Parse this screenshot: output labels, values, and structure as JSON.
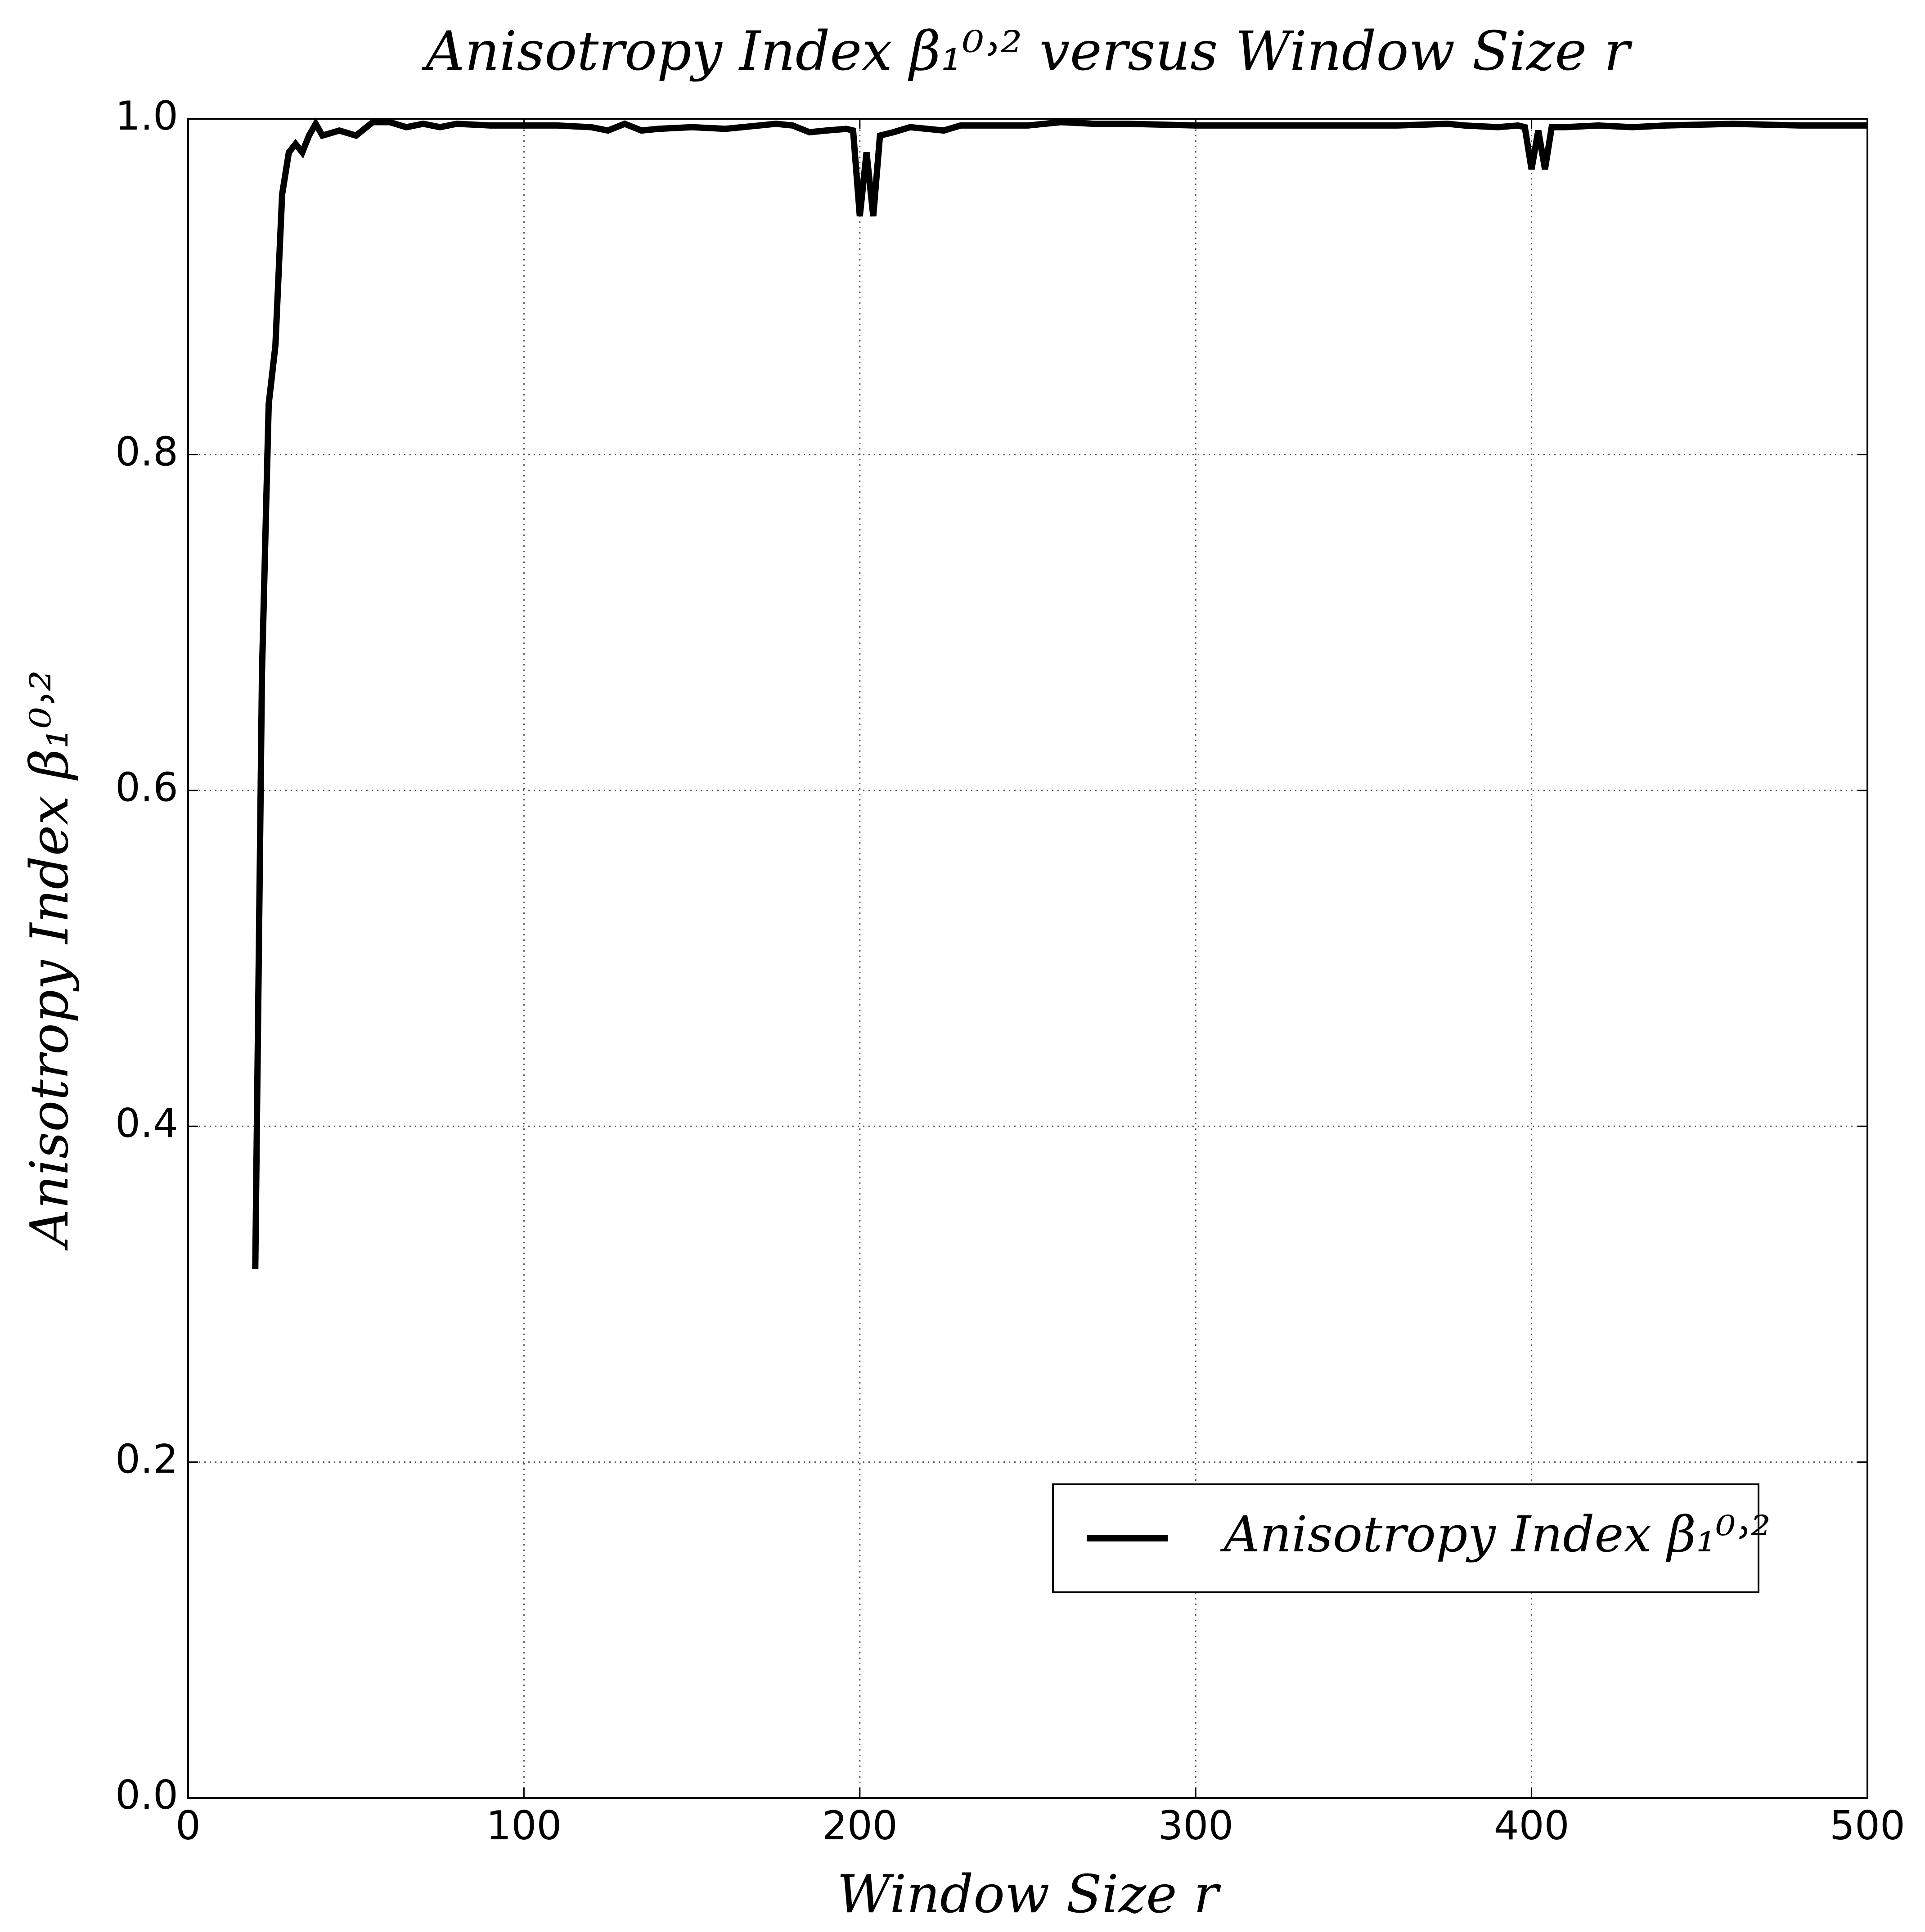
{
  "chart_data": {
    "type": "line",
    "title": "Anisotropy Index β₁⁰˒² versus Window Size r",
    "xlabel": "Window Size r",
    "ylabel": "Anisotropy Index β₁⁰˒²",
    "x": [
      20,
      22,
      24,
      26,
      28,
      30,
      32,
      34,
      36,
      38,
      40,
      45,
      50,
      55,
      60,
      65,
      70,
      75,
      80,
      90,
      100,
      110,
      120,
      125,
      130,
      135,
      140,
      150,
      160,
      170,
      175,
      180,
      185,
      190,
      196,
      198,
      200,
      202,
      204,
      206,
      210,
      215,
      220,
      225,
      230,
      240,
      250,
      260,
      270,
      280,
      300,
      320,
      340,
      360,
      375,
      380,
      390,
      396,
      398,
      400,
      402,
      404,
      406,
      410,
      420,
      430,
      440,
      460,
      480,
      500
    ],
    "series": [
      {
        "name": "Anisotropy Index β₁⁰˒²",
        "color": "#000000",
        "values": [
          0.315,
          0.67,
          0.83,
          0.865,
          0.955,
          0.98,
          0.985,
          0.98,
          0.99,
          0.997,
          0.99,
          0.993,
          0.99,
          0.998,
          0.998,
          0.995,
          0.997,
          0.995,
          0.997,
          0.996,
          0.996,
          0.996,
          0.995,
          0.993,
          0.997,
          0.993,
          0.994,
          0.995,
          0.994,
          0.996,
          0.997,
          0.996,
          0.992,
          0.993,
          0.994,
          0.993,
          0.942,
          0.98,
          0.942,
          0.99,
          0.992,
          0.995,
          0.994,
          0.993,
          0.996,
          0.996,
          0.996,
          0.998,
          0.997,
          0.997,
          0.996,
          0.996,
          0.996,
          0.996,
          0.997,
          0.996,
          0.995,
          0.996,
          0.995,
          0.97,
          0.993,
          0.97,
          0.995,
          0.995,
          0.996,
          0.995,
          0.996,
          0.997,
          0.996,
          0.996
        ]
      }
    ],
    "xlim": [
      0,
      500
    ],
    "xticks": [
      0,
      100,
      200,
      300,
      400,
      500
    ],
    "ylim": [
      0,
      1
    ],
    "yticks": [
      {
        "value": 0,
        "label": "0.0"
      },
      0.2,
      0.4,
      0.6,
      0.8,
      {
        "value": 1,
        "label": "1.0"
      }
    ],
    "grid": true,
    "legend": "lower right"
  }
}
